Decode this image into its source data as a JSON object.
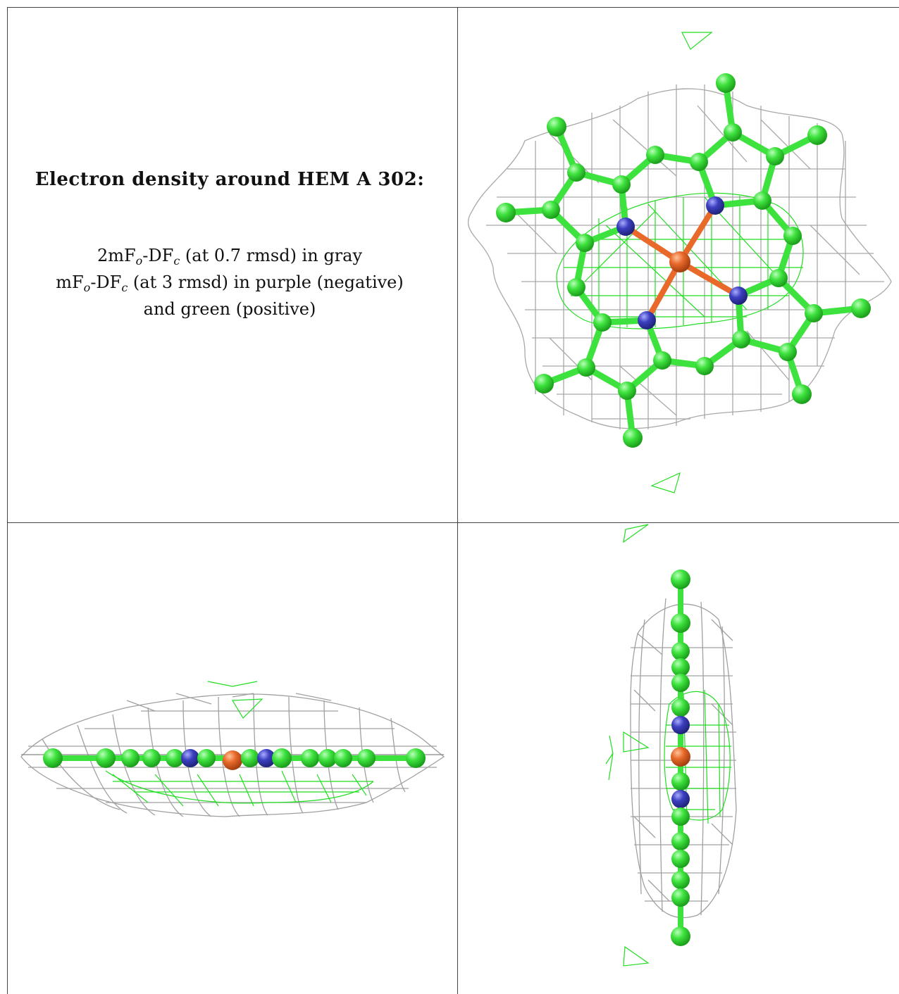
{
  "caption": {
    "title": "Electron density around HEM A 302:",
    "line1": {
      "pre": "2mF",
      "sub1": "o",
      "mid": "-DF",
      "sub2": "c",
      "post": " (at 0.7 rmsd) in gray"
    },
    "line2": {
      "pre": "mF",
      "sub1": "o",
      "mid": "-DF",
      "sub2": "c",
      "post": " (at 3 rmsd) in purple (negative)"
    },
    "line3": "and green (positive)"
  },
  "colors": {
    "carbon": "#3ee23e",
    "nitrogen": "#3b3fbf",
    "iron": "#e8692a",
    "mesh_2fofc": "#9a9a9a",
    "mesh_fofc_positive": "#22dd22",
    "grid_line": "#444444"
  },
  "panels": [
    {
      "name": "top-view",
      "icon": "heme-molecule-top-view"
    },
    {
      "name": "side-view",
      "icon": "heme-molecule-side-view"
    },
    {
      "name": "edge-view",
      "icon": "heme-molecule-edge-view"
    }
  ]
}
